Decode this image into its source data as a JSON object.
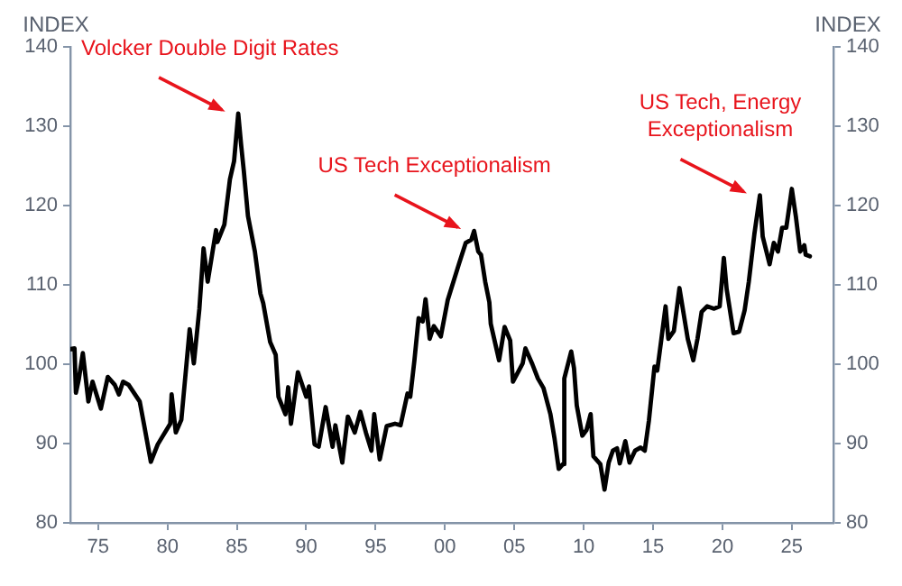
{
  "chart_data": {
    "type": "line",
    "ylabel": "INDEX",
    "y2label": "INDEX",
    "x": [
      1973.0,
      1973.3,
      1973.4,
      1973.6,
      1973.9,
      1974.3,
      1974.6,
      1975.2,
      1975.7,
      1976.2,
      1976.5,
      1976.8,
      1977.2,
      1978.0,
      1978.3,
      1978.8,
      1979.3,
      1980.2,
      1980.3,
      1980.6,
      1981.0,
      1981.6,
      1981.9,
      1982.3,
      1982.6,
      1982.9,
      1983.5,
      1983.6,
      1984.1,
      1984.5,
      1984.8,
      1985.1,
      1985.3,
      1985.5,
      1985.8,
      1986.3,
      1986.7,
      1986.9,
      1987.4,
      1987.8,
      1988.0,
      1988.5,
      1988.7,
      1988.9,
      1989.4,
      1990.0,
      1990.2,
      1990.6,
      1990.9,
      1991.4,
      1991.9,
      1992.1,
      1992.6,
      1993.0,
      1993.5,
      1993.9,
      1994.3,
      1994.7,
      1994.9,
      1995.3,
      1995.8,
      1996.4,
      1996.8,
      1997.3,
      1997.5,
      1997.8,
      1998.1,
      1998.4,
      1998.6,
      1998.9,
      1999.2,
      1999.7,
      2000.2,
      2001.0,
      2001.5,
      2001.9,
      2002.1,
      2002.4,
      2002.6,
      2002.9,
      2003.2,
      2003.3,
      2003.9,
      2004.3,
      2004.7,
      2004.9,
      2005.6,
      2005.8,
      2006.3,
      2006.7,
      2007.1,
      2007.6,
      2007.9,
      2008.2,
      2008.5,
      2008.6,
      2009.1,
      2009.3,
      2009.5,
      2009.9,
      2010.2,
      2010.5,
      2010.7,
      2011.2,
      2011.5,
      2011.8,
      2012.1,
      2012.4,
      2012.6,
      2013.0,
      2013.3,
      2013.7,
      2014.1,
      2014.4,
      2014.7,
      2015.1,
      2015.3,
      2015.6,
      2015.9,
      2016.1,
      2016.5,
      2016.9,
      2017.5,
      2017.9,
      2018.2,
      2018.5,
      2018.9,
      2019.4,
      2019.8,
      2020.1,
      2020.3,
      2020.8,
      2021.2,
      2021.6,
      2021.9,
      2022.3,
      2022.7,
      2022.9,
      2023.4,
      2023.7,
      2024.0,
      2024.3,
      2024.6,
      2025.0,
      2025.3,
      2025.6,
      2025.9,
      2026.0,
      2026.3
    ],
    "series": [
      {
        "color": "#000000",
        "values": [
          101.9,
          102,
          96.4,
          98,
          101.4,
          95.3,
          97.8,
          94.4,
          98.4,
          97.4,
          96.2,
          97.8,
          97.4,
          95.3,
          92.5,
          87.7,
          89.9,
          92.5,
          96.2,
          91.4,
          93,
          104.4,
          100.1,
          107,
          114.6,
          110.4,
          116.9,
          115.4,
          117.6,
          123.3,
          125.6,
          131.6,
          127.8,
          124.4,
          118.7,
          114.2,
          108.9,
          107.7,
          102.8,
          101.2,
          95.9,
          93.7,
          97.1,
          92.5,
          99,
          95.9,
          97.2,
          89.9,
          89.6,
          94.6,
          89.6,
          92.3,
          87.6,
          93.4,
          91.4,
          94,
          91.4,
          89.1,
          93.7,
          88,
          92.2,
          92.5,
          92.3,
          96.3,
          95.9,
          100.5,
          105.8,
          105.4,
          108.2,
          103.2,
          104.8,
          103.5,
          108.1,
          112.6,
          115.3,
          115.7,
          116.8,
          114.2,
          113.8,
          110.4,
          107.8,
          105.1,
          100.5,
          104.7,
          103,
          97.8,
          100.1,
          102,
          100,
          98.2,
          97,
          93.7,
          90.6,
          86.8,
          87.4,
          98.2,
          101.6,
          99.5,
          94.8,
          91,
          91.7,
          93.7,
          88.4,
          87.4,
          84.2,
          87.6,
          89.1,
          89.4,
          87.5,
          90.3,
          87.6,
          89.1,
          89.5,
          89.1,
          92.9,
          99.7,
          99.2,
          103.2,
          107.3,
          103.2,
          104.2,
          109.6,
          103.2,
          100.5,
          103.2,
          106.6,
          107.3,
          107,
          107.3,
          113.4,
          109.5,
          103.9,
          104.1,
          106.8,
          110.4,
          116.4,
          121.3,
          116.1,
          112.6,
          115.3,
          114.2,
          117.2,
          117.2,
          122.1,
          118.5,
          114.2,
          115,
          113.8,
          113.6
        ]
      }
    ],
    "xlim": [
      1973,
      2028
    ],
    "xticks": [
      {
        "value": 1975,
        "label": "75"
      },
      {
        "value": 1980,
        "label": "80"
      },
      {
        "value": 1985,
        "label": "85"
      },
      {
        "value": 1990,
        "label": "90"
      },
      {
        "value": 1995,
        "label": "95"
      },
      {
        "value": 2000,
        "label": "00"
      },
      {
        "value": 2005,
        "label": "05"
      },
      {
        "value": 2010,
        "label": "10"
      },
      {
        "value": 2015,
        "label": "15"
      },
      {
        "value": 2020,
        "label": "20"
      },
      {
        "value": 2025,
        "label": "25"
      }
    ],
    "ylim": [
      80,
      140
    ],
    "yticks": [
      80,
      90,
      100,
      110,
      120,
      130,
      140
    ],
    "y2lim": [
      80,
      140
    ],
    "y2ticks": [
      80,
      90,
      100,
      110,
      120,
      130,
      140
    ],
    "grid": false,
    "legend": false,
    "marker": "none",
    "line_style": "solid",
    "annotations": [
      {
        "text": "Volcker Double Digit Rates",
        "x": 1985.1,
        "y": 131.6
      },
      {
        "text": "US Tech Exceptionalism",
        "x": 2002.1,
        "y": 116.8
      },
      {
        "text": "US Tech, Energy Exceptionalism",
        "x": 2022.7,
        "y": 121.3
      }
    ]
  }
}
